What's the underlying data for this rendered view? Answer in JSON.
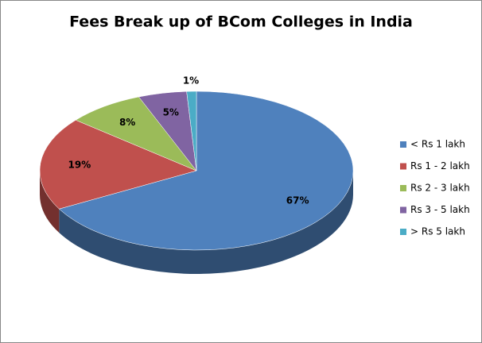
{
  "chart_data": {
    "type": "pie3d",
    "title": "Fees Break up of BCom Colleges in India",
    "categories": [
      "< Rs 1 lakh",
      "Rs 1 - 2 lakh",
      "Rs 2 - 3 lakh",
      "Rs 3 - 5 lakh",
      "> Rs 5 lakh"
    ],
    "values": [
      67,
      19,
      8,
      5,
      1
    ],
    "value_labels": [
      "67%",
      "19%",
      "8%",
      "5%",
      "1%"
    ],
    "colors": [
      "#4f81bd",
      "#c0504d",
      "#9bbb59",
      "#8064a2",
      "#4bacc6"
    ],
    "legend": "right"
  }
}
